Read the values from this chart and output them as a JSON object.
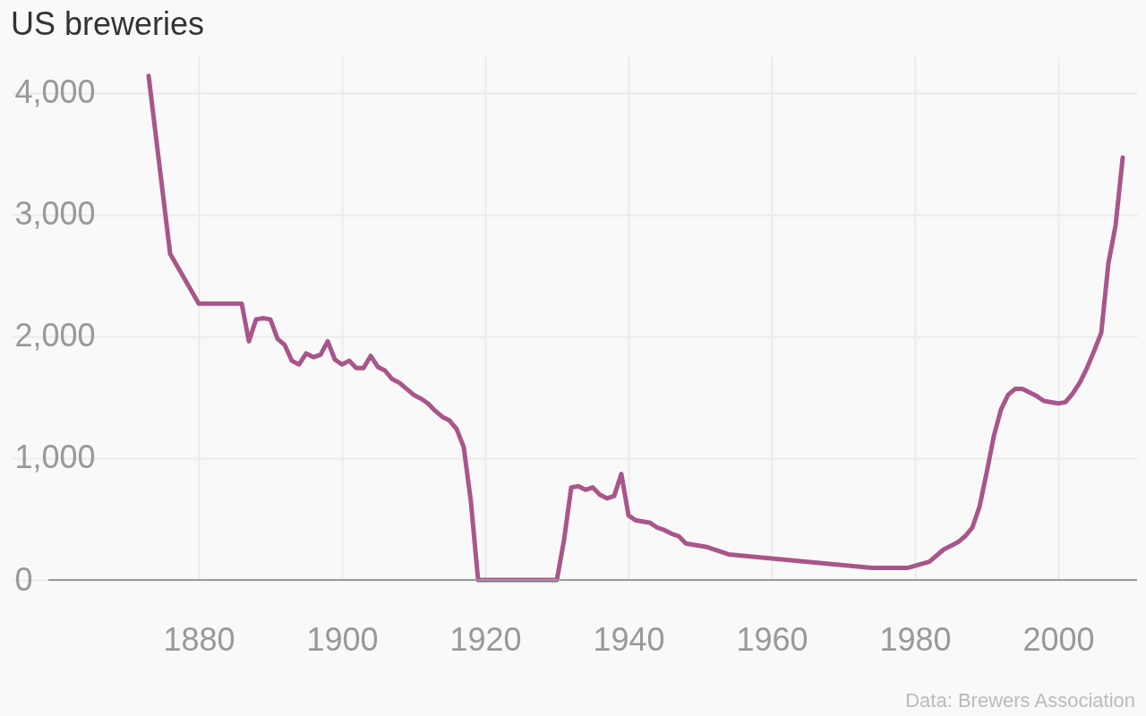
{
  "chart_data": {
    "type": "line",
    "title": "US breweries",
    "annotations": [
      "Data: Brewers Association"
    ],
    "x": [
      1873,
      1876,
      1880,
      1886,
      1887,
      1888,
      1889,
      1890,
      1891,
      1892,
      1893,
      1894,
      1895,
      1896,
      1897,
      1898,
      1899,
      1900,
      1901,
      1902,
      1903,
      1904,
      1905,
      1906,
      1907,
      1908,
      1909,
      1910,
      1911,
      1912,
      1913,
      1914,
      1915,
      1916,
      1917,
      1918,
      1919,
      1930,
      1931,
      1932,
      1933,
      1934,
      1935,
      1936,
      1937,
      1938,
      1939,
      1940,
      1941,
      1942,
      1943,
      1944,
      1945,
      1946,
      1947,
      1948,
      1951,
      1954,
      1974,
      1979,
      1982,
      1984,
      1986,
      1987,
      1988,
      1989,
      1990,
      1991,
      1992,
      1993,
      1994,
      1995,
      1996,
      1997,
      1998,
      2000,
      2001,
      2002,
      2003,
      2004,
      2005,
      2006,
      2007,
      2008,
      2009
    ],
    "series": [
      {
        "color": "#a8568a",
        "values": [
          4140,
          2680,
          2270,
          2270,
          1960,
          2140,
          2150,
          2140,
          1980,
          1930,
          1800,
          1770,
          1860,
          1830,
          1850,
          1960,
          1810,
          1770,
          1800,
          1740,
          1740,
          1840,
          1750,
          1720,
          1650,
          1620,
          1570,
          1520,
          1490,
          1450,
          1390,
          1340,
          1310,
          1240,
          1090,
          640,
          0,
          0,
          330,
          760,
          770,
          740,
          760,
          700,
          670,
          690,
          870,
          530,
          490,
          480,
          470,
          430,
          410,
          380,
          360,
          300,
          270,
          210,
          100,
          100,
          150,
          250,
          310,
          360,
          430,
          600,
          880,
          1180,
          1400,
          1520,
          1570,
          1570,
          1540,
          1510,
          1470,
          1450,
          1460,
          1530,
          1620,
          1740,
          1880,
          2030,
          2600,
          2910,
          3470
        ]
      }
    ],
    "xlim": [
      1854,
      2011
    ],
    "xticks": [
      1880,
      1900,
      1920,
      1940,
      1960,
      1980,
      2000
    ],
    "ylim": [
      0,
      4300
    ],
    "yticks": [
      {
        "value": 0,
        "label": "0"
      },
      {
        "value": 1000,
        "label": "1,000"
      },
      {
        "value": 2000,
        "label": "2,000"
      },
      {
        "value": 3000,
        "label": "3,000"
      },
      {
        "value": 4000,
        "label": "4,000"
      }
    ],
    "grid": true
  }
}
